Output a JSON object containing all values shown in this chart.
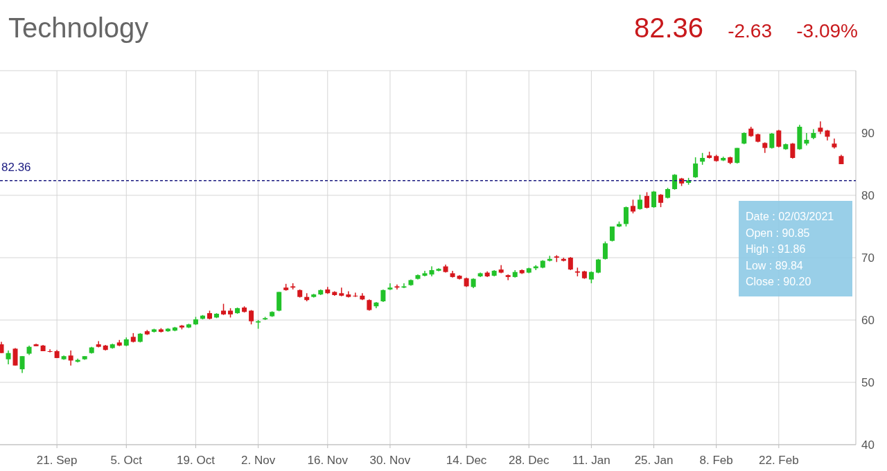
{
  "chart_data": {
    "type": "candlestick",
    "title": "Technology",
    "categories": [
      null,
      null,
      null,
      null,
      null,
      null,
      null,
      null,
      "21. Sep",
      null,
      null,
      null,
      null,
      null,
      null,
      null,
      null,
      null,
      "5. Oct",
      null,
      null,
      null,
      null,
      null,
      null,
      null,
      null,
      null,
      "19. Oct",
      null,
      null,
      null,
      null,
      null,
      null,
      null,
      null,
      "2. Nov",
      null,
      null,
      null,
      null,
      null,
      null,
      null,
      null,
      null,
      "16. Nov",
      null,
      null,
      null,
      null,
      null,
      null,
      null,
      null,
      "30. Nov",
      null,
      null,
      null,
      null,
      null,
      null,
      null,
      null,
      null,
      null,
      "14. Dec",
      null,
      null,
      null,
      null,
      null,
      null,
      null,
      null,
      "28. Dec",
      null,
      null,
      null,
      null,
      null,
      null,
      null,
      null,
      "11. Jan",
      null,
      null,
      null,
      null,
      null,
      null,
      null,
      null,
      "25. Jan",
      null,
      null,
      null,
      null,
      null,
      null,
      null,
      null,
      "8. Feb",
      null,
      null,
      null,
      null,
      null,
      null,
      null,
      null,
      "22. Feb",
      null,
      null,
      null,
      null,
      null,
      null,
      null,
      null,
      null
    ],
    "ohlc": [
      [
        56.1,
        56.5,
        54.7,
        54.7
      ],
      [
        53.7,
        55.1,
        52.9,
        54.7
      ],
      [
        55.4,
        55.5,
        52.7,
        52.7
      ],
      [
        52.1,
        54.2,
        51.5,
        54.2
      ],
      [
        54.6,
        55.9,
        54.4,
        55.7
      ],
      [
        56.1,
        56.2,
        55.8,
        55.8
      ],
      [
        55.9,
        56.0,
        55.0,
        55.0
      ],
      [
        55.0,
        55.3,
        54.8,
        54.9
      ],
      [
        55.0,
        55.2,
        53.9,
        53.9
      ],
      [
        53.7,
        54.3,
        53.6,
        54.2
      ],
      [
        54.3,
        55.1,
        52.7,
        53.5
      ],
      [
        53.3,
        53.8,
        53.2,
        53.6
      ],
      [
        53.7,
        54.2,
        53.6,
        54.2
      ],
      [
        54.7,
        55.7,
        54.6,
        55.6
      ],
      [
        56.1,
        56.6,
        55.6,
        55.7
      ],
      [
        55.9,
        56.0,
        55.1,
        55.2
      ],
      [
        55.5,
        56.2,
        55.4,
        56.1
      ],
      [
        56.4,
        56.8,
        55.8,
        55.9
      ],
      [
        55.9,
        57.2,
        55.8,
        56.9
      ],
      [
        57.3,
        57.9,
        56.4,
        56.5
      ],
      [
        56.5,
        57.9,
        56.4,
        57.8
      ],
      [
        58.2,
        58.4,
        57.6,
        57.7
      ],
      [
        58.1,
        58.6,
        58.0,
        58.5
      ],
      [
        58.5,
        58.7,
        58.0,
        58.1
      ],
      [
        58.2,
        58.7,
        58.1,
        58.6
      ],
      [
        58.3,
        58.9,
        58.2,
        58.8
      ],
      [
        59.1,
        59.2,
        58.5,
        58.8
      ],
      [
        58.8,
        59.4,
        58.7,
        59.3
      ],
      [
        59.3,
        60.5,
        59.2,
        60.1
      ],
      [
        60.2,
        60.8,
        60.1,
        60.7
      ],
      [
        61.1,
        61.5,
        60.1,
        60.2
      ],
      [
        60.4,
        61.1,
        60.3,
        61.0
      ],
      [
        61.5,
        62.6,
        60.8,
        60.9
      ],
      [
        61.5,
        61.9,
        60.4,
        60.9
      ],
      [
        61.1,
        62.0,
        61.0,
        61.9
      ],
      [
        62.0,
        62.2,
        61.2,
        61.3
      ],
      [
        61.5,
        61.6,
        59.3,
        59.8
      ],
      [
        59.6,
        60.0,
        58.6,
        59.8
      ],
      [
        60.1,
        60.5,
        60.0,
        60.3
      ],
      [
        60.6,
        61.4,
        60.5,
        61.3
      ],
      [
        61.5,
        64.5,
        61.4,
        64.5
      ],
      [
        65.2,
        65.8,
        64.7,
        64.8
      ],
      [
        65.4,
        65.9,
        64.9,
        65.2
      ],
      [
        64.8,
        64.9,
        63.6,
        63.7
      ],
      [
        63.7,
        64.3,
        63.0,
        63.2
      ],
      [
        63.7,
        64.2,
        63.6,
        64.1
      ],
      [
        64.1,
        64.9,
        64.0,
        64.8
      ],
      [
        64.9,
        65.3,
        64.2,
        64.3
      ],
      [
        64.5,
        64.6,
        63.9,
        64.0
      ],
      [
        64.3,
        65.2,
        63.8,
        63.9
      ],
      [
        64.1,
        64.6,
        63.6,
        63.7
      ],
      [
        63.9,
        64.4,
        63.7,
        63.8
      ],
      [
        63.9,
        64.3,
        63.2,
        63.3
      ],
      [
        63.2,
        63.3,
        61.5,
        61.6
      ],
      [
        62.2,
        62.9,
        61.9,
        62.8
      ],
      [
        63.0,
        64.9,
        62.9,
        64.8
      ],
      [
        64.9,
        65.9,
        64.8,
        65.2
      ],
      [
        65.4,
        65.7,
        64.9,
        65.2
      ],
      [
        65.2,
        65.9,
        65.1,
        65.4
      ],
      [
        65.6,
        66.5,
        65.5,
        66.4
      ],
      [
        66.6,
        67.3,
        66.5,
        67.2
      ],
      [
        67.1,
        67.9,
        67.0,
        67.5
      ],
      [
        67.3,
        68.6,
        67.0,
        68.0
      ],
      [
        67.9,
        68.3,
        67.8,
        68.2
      ],
      [
        68.6,
        68.9,
        67.6,
        67.7
      ],
      [
        67.5,
        67.9,
        66.8,
        66.9
      ],
      [
        67.1,
        67.2,
        66.5,
        66.6
      ],
      [
        66.7,
        66.8,
        65.3,
        65.4
      ],
      [
        65.3,
        66.7,
        65.1,
        66.6
      ],
      [
        67.0,
        67.6,
        66.9,
        67.5
      ],
      [
        67.6,
        67.8,
        66.9,
        67.0
      ],
      [
        67.1,
        68.0,
        67.0,
        67.9
      ],
      [
        68.1,
        68.8,
        67.5,
        67.6
      ],
      [
        67.2,
        67.3,
        66.4,
        66.9
      ],
      [
        66.9,
        68.0,
        66.8,
        67.7
      ],
      [
        68.0,
        68.1,
        67.4,
        67.5
      ],
      [
        67.6,
        68.4,
        67.5,
        68.3
      ],
      [
        68.3,
        68.8,
        68.0,
        68.6
      ],
      [
        68.4,
        69.6,
        68.3,
        69.5
      ],
      [
        69.5,
        70.3,
        69.4,
        69.8
      ],
      [
        70.2,
        70.4,
        69.3,
        70.0
      ],
      [
        69.8,
        70.0,
        69.4,
        69.5
      ],
      [
        70.0,
        70.1,
        68.0,
        68.1
      ],
      [
        67.8,
        68.4,
        67.0,
        67.6
      ],
      [
        67.8,
        67.9,
        66.6,
        66.7
      ],
      [
        66.5,
        67.8,
        65.9,
        67.7
      ],
      [
        67.6,
        69.8,
        67.5,
        69.7
      ],
      [
        69.8,
        72.6,
        69.7,
        72.3
      ],
      [
        72.7,
        75.0,
        72.6,
        75.0
      ],
      [
        75.0,
        75.8,
        74.9,
        75.4
      ],
      [
        75.4,
        78.2,
        75.0,
        78.1
      ],
      [
        78.3,
        79.3,
        77.1,
        77.4
      ],
      [
        77.8,
        80.1,
        77.7,
        79.3
      ],
      [
        79.9,
        80.5,
        77.9,
        78.0
      ],
      [
        78.1,
        80.7,
        78.0,
        80.6
      ],
      [
        80.1,
        80.2,
        78.1,
        78.8
      ],
      [
        79.6,
        81.2,
        79.5,
        81.0
      ],
      [
        81.0,
        83.4,
        80.9,
        83.3
      ],
      [
        82.7,
        82.8,
        81.5,
        81.9
      ],
      [
        82.0,
        82.8,
        81.7,
        82.4
      ],
      [
        82.9,
        86.1,
        82.8,
        85.1
      ],
      [
        85.4,
        86.8,
        84.9,
        86.0
      ],
      [
        86.4,
        87.0,
        85.9,
        86.0
      ],
      [
        86.3,
        86.5,
        85.4,
        85.5
      ],
      [
        85.6,
        86.2,
        85.5,
        86.0
      ],
      [
        86.1,
        86.2,
        85.0,
        85.2
      ],
      [
        85.2,
        87.6,
        85.1,
        87.6
      ],
      [
        88.3,
        90.1,
        88.2,
        90.0
      ],
      [
        90.7,
        91.0,
        89.4,
        89.5
      ],
      [
        89.8,
        89.9,
        88.5,
        88.6
      ],
      [
        88.4,
        88.5,
        86.8,
        87.6
      ],
      [
        87.6,
        90.0,
        87.5,
        89.9
      ],
      [
        90.4,
        90.5,
        87.7,
        87.8
      ],
      [
        87.4,
        88.3,
        87.3,
        88.2
      ],
      [
        88.3,
        88.4,
        85.9,
        86.0
      ],
      [
        87.4,
        91.3,
        87.3,
        91.0
      ],
      [
        88.3,
        90.0,
        88.0,
        88.9
      ],
      [
        89.2,
        90.6,
        89.0,
        90.0
      ],
      [
        90.85,
        91.86,
        89.84,
        90.2
      ],
      [
        90.4,
        90.5,
        88.8,
        89.4
      ],
      [
        88.3,
        89.1,
        87.5,
        87.7
      ],
      [
        86.3,
        86.5,
        85.0,
        85.0
      ]
    ],
    "ylim": [
      40,
      100
    ],
    "yticks": [
      40,
      50,
      60,
      70,
      80,
      90
    ],
    "grid": true,
    "ref_lines": [
      {
        "axis": "y",
        "value": 82.36,
        "label": "82.36",
        "color": "#1a1a80",
        "line_style": "dashed"
      }
    ],
    "annotations": [
      "82.36",
      "-2.63",
      "-3.09%",
      "Date : 02/03/2021",
      "Open : 90.85",
      "High : 91.86",
      "Low : 89.84",
      "Close : 90.20"
    ]
  }
}
